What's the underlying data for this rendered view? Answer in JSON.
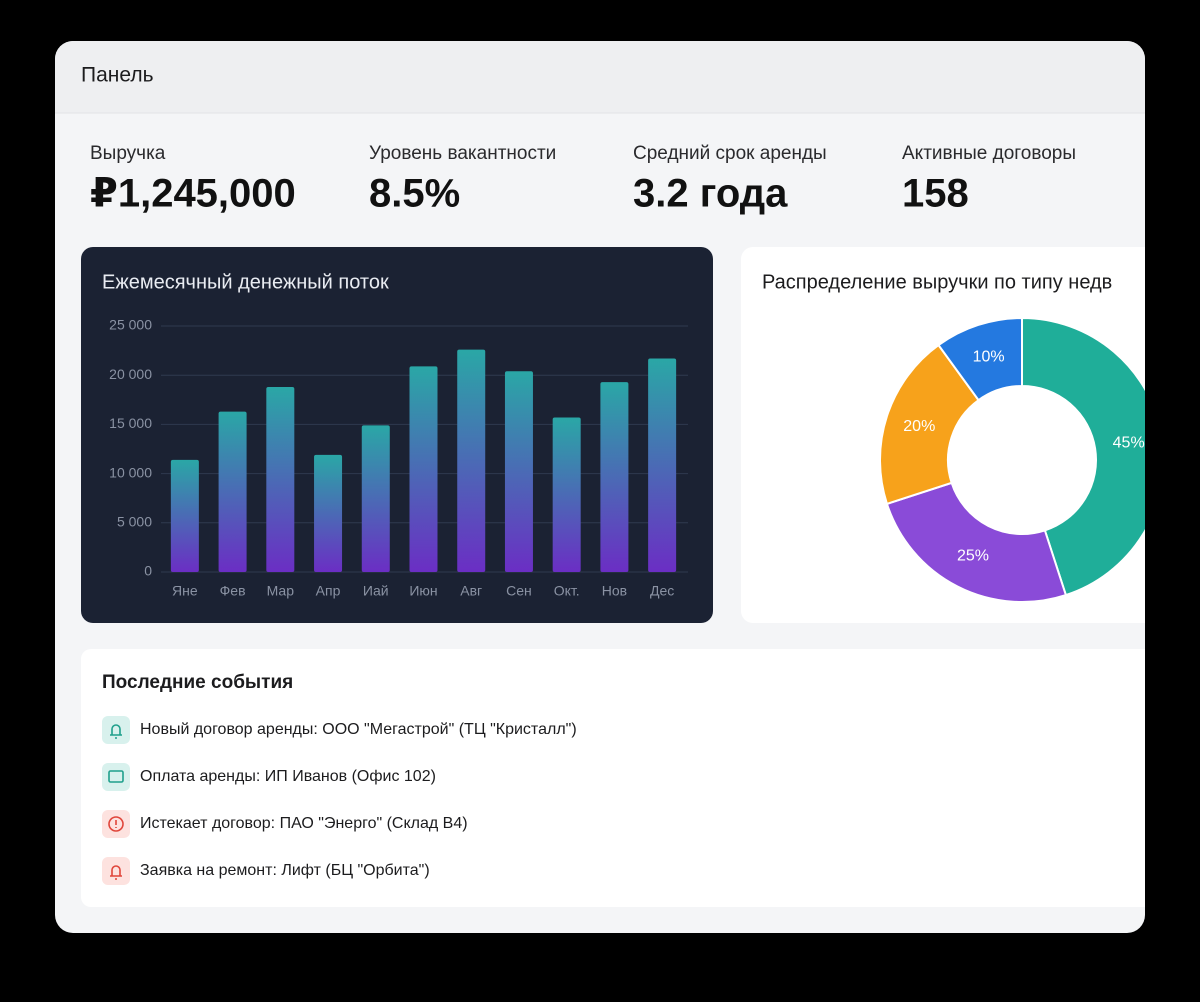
{
  "header": {
    "title": "Панель"
  },
  "kpis": [
    {
      "label": "Выручка",
      "value": "₽1,245,000"
    },
    {
      "label": "Уровень вакантности",
      "value": "8.5%"
    },
    {
      "label": "Средний срок аренды",
      "value": "3.2 года"
    },
    {
      "label": "Активные договоры",
      "value": "158"
    }
  ],
  "chart_data": [
    {
      "type": "bar",
      "title": "Ежемесячный денежный поток",
      "categories": [
        "Яне",
        "Фев",
        "Мар",
        "Апр",
        "Иай",
        "Июн",
        "Авг",
        "Сен",
        "Окт.",
        "Нов",
        "Дес"
      ],
      "values": [
        11400,
        16300,
        18800,
        11900,
        14900,
        20900,
        22600,
        20400,
        15700,
        19300,
        21700
      ],
      "color": [
        "#2aa7a6",
        "#6b2ec4"
      ],
      "ylim": [
        0,
        25000
      ],
      "yticks": [
        0,
        {
          "value": 5000,
          "label": "5 000"
        },
        {
          "value": 10000,
          "label": "10 000"
        },
        {
          "value": 15000,
          "label": "15 000"
        },
        {
          "value": 20000,
          "label": "20 000"
        },
        {
          "value": 25000,
          "label": "25 000"
        }
      ],
      "grid": true
    },
    {
      "type": "pie",
      "title": "Распределение выручки по типу недв",
      "values": [
        45,
        25,
        20,
        10
      ],
      "value_labels": [
        "45%",
        "25%",
        "20%",
        "10%"
      ],
      "colors": [
        "#1fae99",
        "#8a4bd8",
        "#f7a21b",
        "#2479e0"
      ]
    }
  ],
  "events": {
    "title": "Последние события",
    "items": [
      "Новый договор аренды: ООО \"Мегастрой\" (ТЦ \"Кристалл\")",
      "Оплата аренды: ИП Иванов (Офис 102)",
      "Истекает договор: ПАО \"Энерго\" (Склад В4)",
      "Заявка на ремонт: Лифт (БЦ \"Орбита\")"
    ]
  }
}
